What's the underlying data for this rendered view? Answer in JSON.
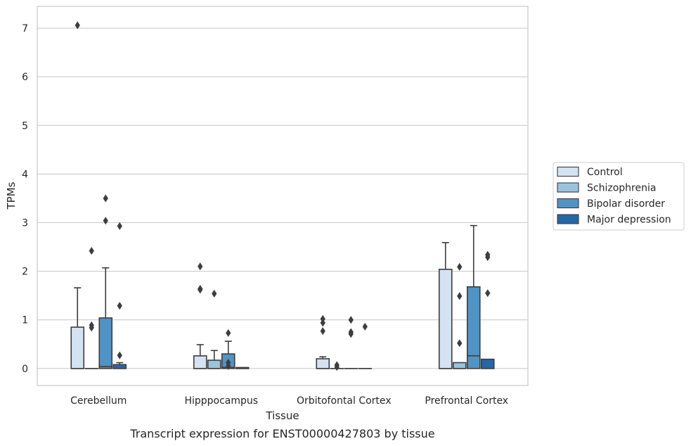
{
  "chart_data": {
    "type": "box",
    "xlabel": "Tissue",
    "ylabel": "TPMs",
    "caption": "Transcript expression for ENST00000427803 by tissue",
    "ylim": [
      -0.35,
      7.45
    ],
    "yticks": [
      0,
      1,
      2,
      3,
      4,
      5,
      6,
      7
    ],
    "grid": "horizontal",
    "legend_position": "right",
    "categories": [
      "Cerebellum",
      "Hipppocampus",
      "Orbitofontal Cortex",
      "Prefrontal Cortex"
    ],
    "series": [
      {
        "name": "Control",
        "color": "#d4e3f2",
        "boxes": [
          {
            "q1": 0,
            "median": 0,
            "q3": 0.85,
            "whisker_low": 0,
            "whisker_high": 1.66,
            "outliers": [
              7.06
            ]
          },
          {
            "q1": 0,
            "median": 0,
            "q3": 0.26,
            "whisker_low": 0,
            "whisker_high": 0.49,
            "outliers": [
              2.1,
              1.64,
              1.62
            ]
          },
          {
            "q1": 0,
            "median": 0,
            "q3": 0.2,
            "whisker_low": 0,
            "whisker_high": 0.24,
            "outliers": [
              1.02,
              0.94,
              0.77
            ]
          },
          {
            "q1": 0,
            "median": 0,
            "q3": 2.04,
            "whisker_low": 0,
            "whisker_high": 2.59,
            "outliers": []
          }
        ]
      },
      {
        "name": "Schizophrenia",
        "color": "#9ac3de",
        "boxes": [
          {
            "q1": 0,
            "median": 0,
            "q3": 0,
            "whisker_low": 0,
            "whisker_high": 0,
            "outliers": [
              2.42,
              0.89,
              0.84
            ]
          },
          {
            "q1": 0,
            "median": 0,
            "q3": 0.17,
            "whisker_low": 0,
            "whisker_high": 0.37,
            "outliers": [
              1.54
            ]
          },
          {
            "q1": 0,
            "median": 0,
            "q3": 0,
            "whisker_low": 0,
            "whisker_high": 0,
            "outliers": [
              0.07,
              0.03
            ]
          },
          {
            "q1": 0,
            "median": 0,
            "q3": 0.12,
            "whisker_low": 0,
            "whisker_high": 0.12,
            "outliers": [
              2.09,
              1.49,
              0.52
            ]
          }
        ]
      },
      {
        "name": "Bipolar disorder",
        "color": "#5093c5",
        "boxes": [
          {
            "q1": 0,
            "median": 0.04,
            "q3": 1.04,
            "whisker_low": 0,
            "whisker_high": 2.07,
            "outliers": [
              3.5,
              3.04
            ]
          },
          {
            "q1": 0,
            "median": 0.02,
            "q3": 0.3,
            "whisker_low": 0,
            "whisker_high": 0.56,
            "outliers": [
              0.73,
              0.12,
              0.05
            ]
          },
          {
            "q1": 0,
            "median": 0,
            "q3": 0,
            "whisker_low": 0,
            "whisker_high": 0,
            "outliers": [
              1.0,
              0.75,
              0.71
            ]
          },
          {
            "q1": 0,
            "median": 0.26,
            "q3": 1.68,
            "whisker_low": 0,
            "whisker_high": 2.94,
            "outliers": []
          }
        ]
      },
      {
        "name": "Major depression",
        "color": "#2566a7",
        "boxes": [
          {
            "q1": 0,
            "median": 0,
            "q3": 0.08,
            "whisker_low": 0,
            "whisker_high": 0.12,
            "outliers": [
              2.93,
              1.29,
              0.27
            ]
          },
          {
            "q1": 0,
            "median": 0,
            "q3": 0.02,
            "whisker_low": 0,
            "whisker_high": 0.02,
            "outliers": []
          },
          {
            "q1": 0,
            "median": 0,
            "q3": 0,
            "whisker_low": 0,
            "whisker_high": 0,
            "outliers": [
              0.86
            ]
          },
          {
            "q1": 0,
            "median": 0,
            "q3": 0.19,
            "whisker_low": 0,
            "whisker_high": 0.19,
            "outliers": [
              2.34,
              2.29,
              1.55
            ]
          }
        ]
      }
    ]
  }
}
